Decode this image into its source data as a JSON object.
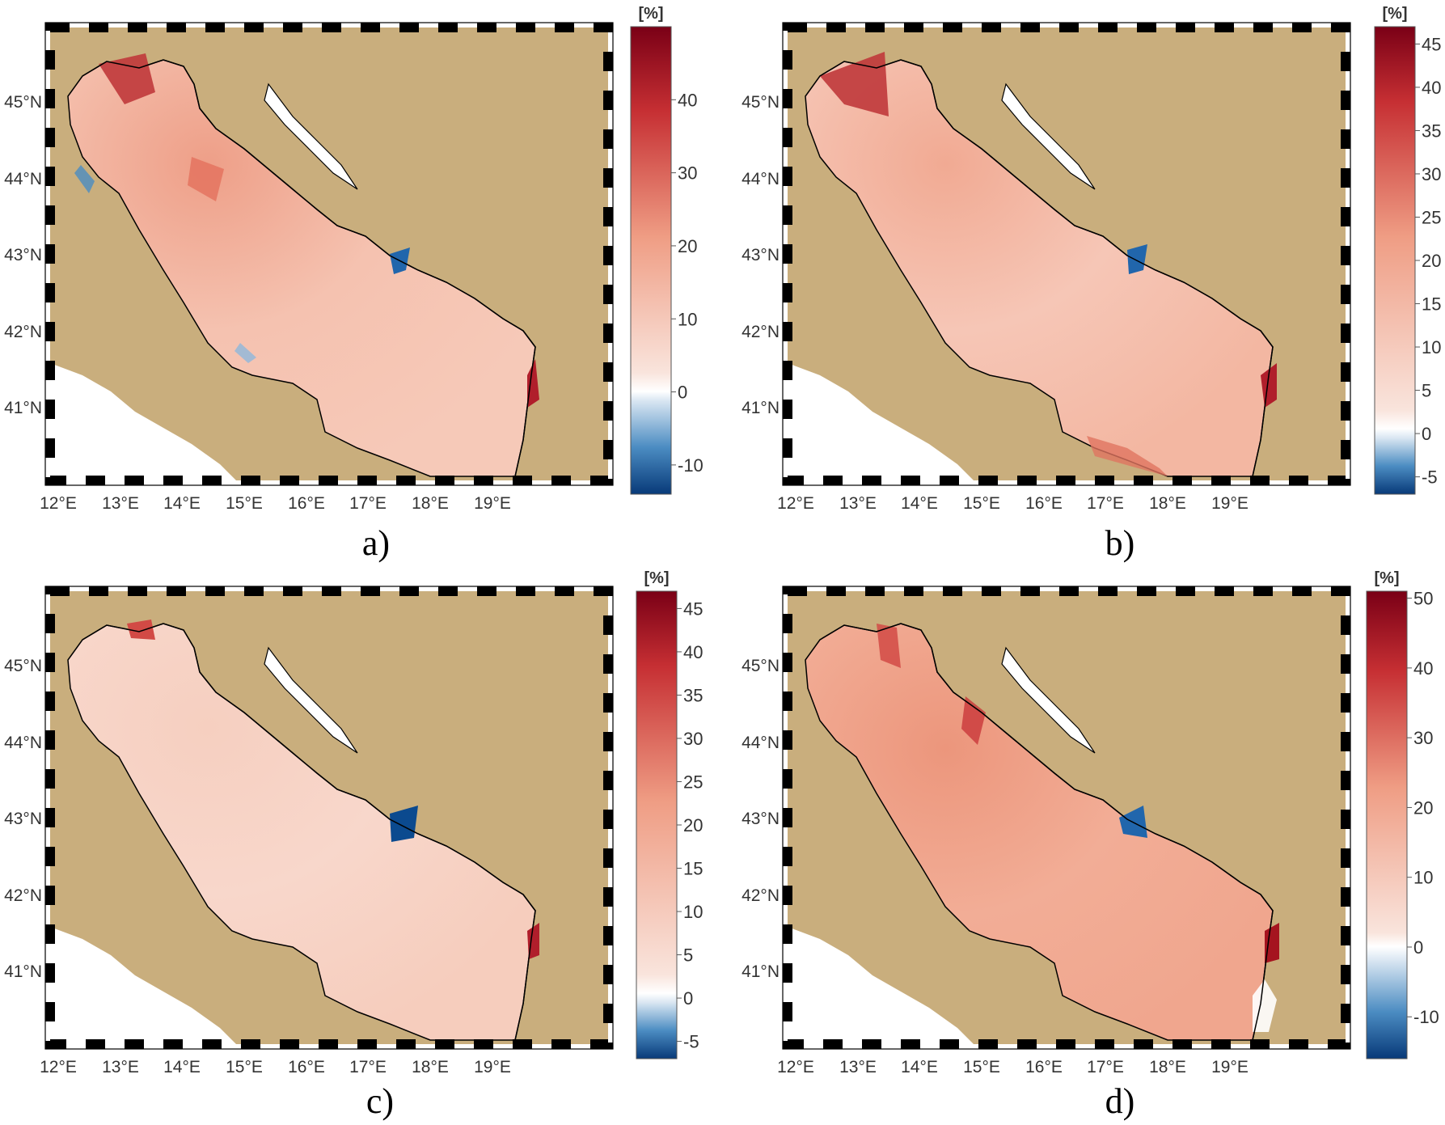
{
  "colors": {
    "land": "#c9ae7d",
    "sea_zero": "#f7e9e3",
    "positive_max": "#7a0016",
    "negative_min": "#083a79",
    "coastline": "#000000"
  },
  "colorbar": {
    "unit": "[%]"
  },
  "axes": {
    "lon_labels": [
      "12°E",
      "13°E",
      "14°E",
      "15°E",
      "16°E",
      "17°E",
      "18°E",
      "19°E"
    ],
    "lat_labels": [
      "45°N",
      "44°N",
      "43°N",
      "42°N",
      "41°N"
    ]
  },
  "panels": [
    {
      "label": "a)",
      "colorbar_min": -14,
      "colorbar_max": 50,
      "colorbar_ticks": [
        "40",
        "30",
        "20",
        "10",
        "0",
        "-10"
      ],
      "colorbar_tick_values": [
        40,
        30,
        20,
        10,
        0,
        -10
      ]
    },
    {
      "label": "b)",
      "colorbar_min": -7,
      "colorbar_max": 47,
      "colorbar_ticks": [
        "45",
        "40",
        "35",
        "30",
        "25",
        "20",
        "15",
        "10",
        "5",
        "0",
        "-5"
      ],
      "colorbar_tick_values": [
        45,
        40,
        35,
        30,
        25,
        20,
        15,
        10,
        5,
        0,
        -5
      ]
    },
    {
      "label": "c)",
      "colorbar_min": -7,
      "colorbar_max": 47,
      "colorbar_ticks": [
        "45",
        "40",
        "35",
        "30",
        "25",
        "20",
        "15",
        "10",
        "5",
        "0",
        "-5"
      ],
      "colorbar_tick_values": [
        45,
        40,
        35,
        30,
        25,
        20,
        15,
        10,
        5,
        0,
        -5
      ]
    },
    {
      "label": "d)",
      "colorbar_min": -16,
      "colorbar_max": 51,
      "colorbar_ticks": [
        "50",
        "40",
        "30",
        "20",
        "10",
        "0",
        "-10"
      ],
      "colorbar_tick_values": [
        50,
        40,
        30,
        20,
        10,
        0,
        -10
      ]
    }
  ]
}
